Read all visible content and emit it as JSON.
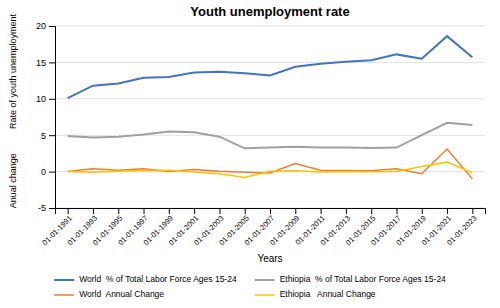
{
  "chart_data": {
    "type": "line",
    "title": "Youth unemployment rate",
    "xlabel": "Years",
    "ylabel_top": "Rate of youth unemployment",
    "ylabel_bottom": "Anual change",
    "categories": [
      "01-01-1991",
      "01-01-1993",
      "01-01-1995",
      "01-01-1997",
      "01-01-1999",
      "01-01-2001",
      "01-01-2003",
      "01-01-2005",
      "01-01-2007",
      "01-01-2009",
      "01-01-2011",
      "01-01-2013",
      "01-01-2015",
      "01-01-2017",
      "01-01-2019",
      "01-01-2021",
      "01-01-2023"
    ],
    "series": [
      {
        "name": "World  % of Total Labor Force Ages 15-24",
        "color": "#4472C4",
        "values": [
          10.1,
          11.8,
          12.1,
          12.9,
          13.0,
          13.6,
          13.7,
          13.5,
          13.2,
          14.4,
          14.8,
          15.1,
          15.3,
          16.1,
          15.5,
          18.6,
          15.7
        ]
      },
      {
        "name": "World  Annual Change",
        "color": "#ED7D31",
        "values": [
          0.0,
          0.4,
          0.2,
          0.4,
          0.0,
          0.3,
          0.05,
          -0.1,
          -0.2,
          1.1,
          0.2,
          0.15,
          0.1,
          0.4,
          -0.3,
          3.1,
          -1.0
        ]
      },
      {
        "name": "Ethiopia  % of Total Labor Force Ages 15-24",
        "color": "#A0A0A0",
        "values": [
          4.9,
          4.7,
          4.8,
          5.1,
          5.5,
          5.4,
          4.8,
          3.2,
          3.3,
          3.4,
          3.3,
          3.3,
          3.25,
          3.3,
          5.0,
          6.7,
          6.4
        ]
      },
      {
        "name": "Ethiopia   Annual Change",
        "color": "#FFC000",
        "values": [
          0.0,
          -0.1,
          0.05,
          0.15,
          0.2,
          -0.05,
          -0.3,
          -0.8,
          0.05,
          0.1,
          -0.05,
          0.0,
          -0.03,
          0.03,
          0.7,
          1.3,
          -0.15
        ]
      }
    ],
    "ylim": [
      -5,
      20
    ],
    "yticks": [
      -5,
      0,
      5,
      10,
      15,
      20
    ],
    "grid": true,
    "legend": "bottom"
  }
}
